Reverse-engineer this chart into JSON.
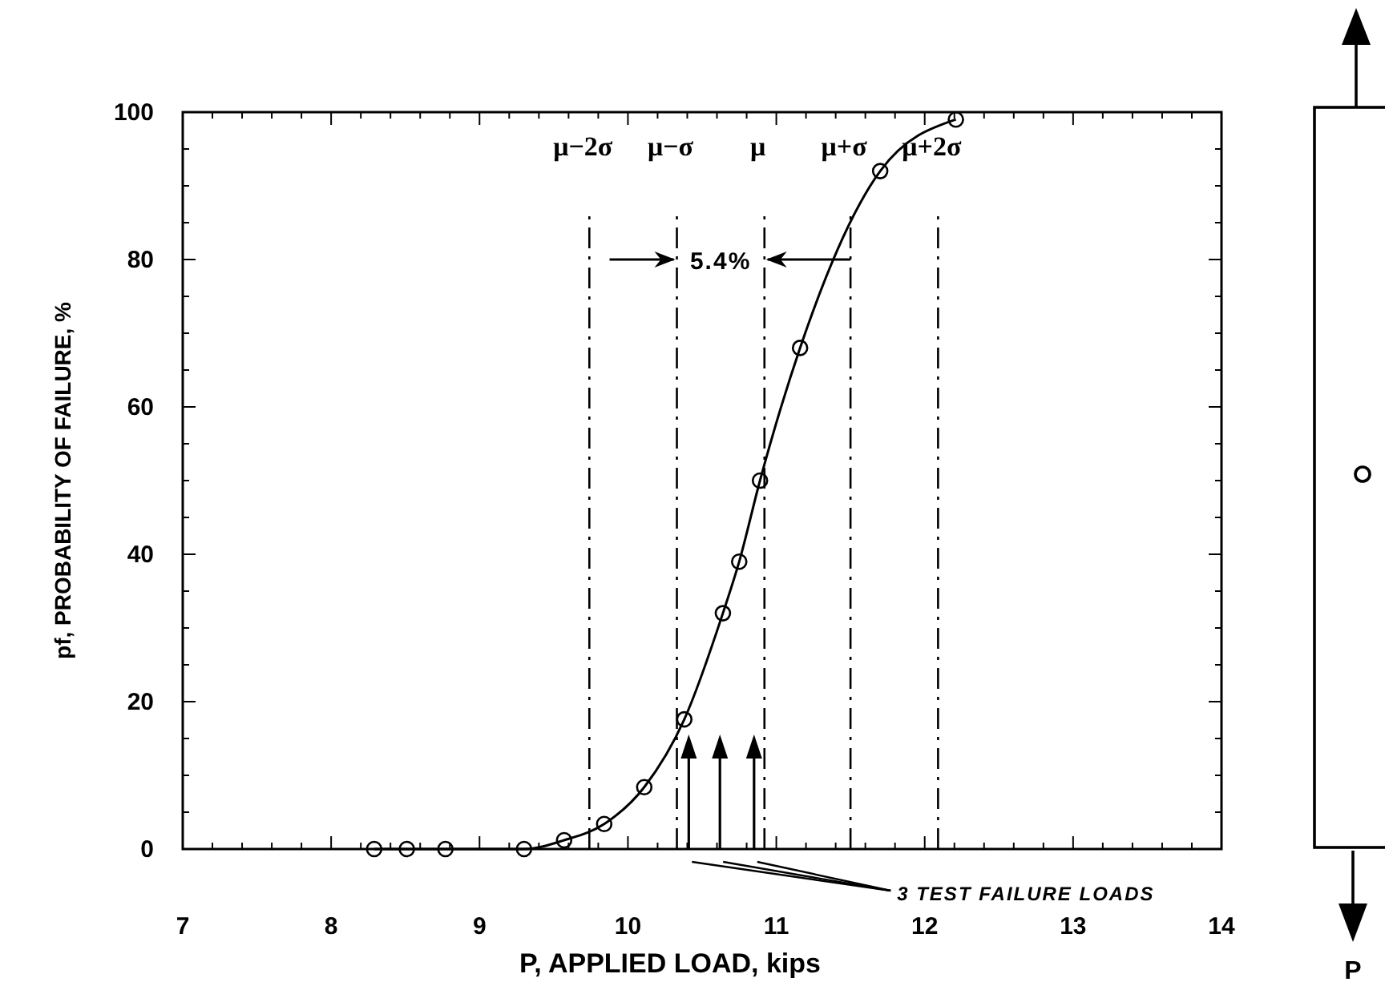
{
  "chart_data": {
    "type": "line",
    "xlabel": "P, APPLIED LOAD, kips",
    "ylabel": "pf, PROBABILITY OF FAILURE, %",
    "xlim": [
      7,
      14
    ],
    "ylim": [
      0,
      100
    ],
    "xticks": [
      7,
      {
        "value": 7.2,
        "label": null
      },
      {
        "value": 7.4,
        "label": null
      },
      {
        "value": 7.6,
        "label": null
      },
      {
        "value": 7.8,
        "label": null
      },
      8,
      {
        "value": 8.2,
        "label": null
      },
      {
        "value": 8.4,
        "label": null
      },
      {
        "value": 8.6,
        "label": null
      },
      {
        "value": 8.8,
        "label": null
      },
      9,
      {
        "value": 9.2,
        "label": null
      },
      {
        "value": 9.4,
        "label": null
      },
      {
        "value": 9.6,
        "label": null
      },
      {
        "value": 9.8,
        "label": null
      },
      10,
      {
        "value": 10.2,
        "label": null
      },
      {
        "value": 10.4,
        "label": null
      },
      {
        "value": 10.6,
        "label": null
      },
      {
        "value": 10.8,
        "label": null
      },
      11,
      {
        "value": 11.2,
        "label": null
      },
      {
        "value": 11.4,
        "label": null
      },
      {
        "value": 11.6,
        "label": null
      },
      {
        "value": 11.8,
        "label": null
      },
      12,
      {
        "value": 12.2,
        "label": null
      },
      {
        "value": 12.4,
        "label": null
      },
      {
        "value": 12.6,
        "label": null
      },
      {
        "value": 12.8,
        "label": null
      },
      13,
      {
        "value": 13.2,
        "label": null
      },
      {
        "value": 13.4,
        "label": null
      },
      {
        "value": 13.6,
        "label": null
      },
      {
        "value": 13.8,
        "label": null
      },
      14
    ],
    "yticks": [
      0,
      {
        "value": 5,
        "label": null
      },
      {
        "value": 10,
        "label": null
      },
      {
        "value": 15,
        "label": null
      },
      20,
      {
        "value": 25,
        "label": null
      },
      {
        "value": 30,
        "label": null
      },
      {
        "value": 35,
        "label": null
      },
      40,
      {
        "value": 45,
        "label": null
      },
      {
        "value": 50,
        "label": null
      },
      {
        "value": 55,
        "label": null
      },
      60,
      {
        "value": 65,
        "label": null
      },
      {
        "value": 70,
        "label": null
      },
      {
        "value": 75,
        "label": null
      },
      80,
      {
        "value": 85,
        "label": null
      },
      {
        "value": 90,
        "label": null
      },
      {
        "value": 95,
        "label": null
      },
      100
    ],
    "grid": false,
    "marker": "circle",
    "line_style": "solid",
    "series": [
      {
        "color": "#000000",
        "x": [
          8.29,
          8.51,
          8.77,
          9.3,
          9.57,
          9.84,
          10.11,
          10.38,
          10.64,
          10.75,
          10.89,
          11.16,
          11.7,
          12.21
        ],
        "values": [
          0,
          0,
          0,
          0,
          1.2,
          3.4,
          8.4,
          17.6,
          32,
          39,
          50,
          68,
          92,
          99
        ]
      },
      {
        "type": "lollipop",
        "color": "#000000",
        "marker": "triangle",
        "x": [
          10.41,
          10.62,
          10.85
        ],
        "values": [
          13.6,
          13.6,
          13.6
        ]
      }
    ],
    "ref_lines": [
      {
        "axis": "x",
        "value": 9.74,
        "label": "μ−2σ",
        "line_style": "dashed",
        "color": "#000000"
      },
      {
        "axis": "x",
        "value": 10.33,
        "label": "μ−σ",
        "line_style": "dashed",
        "color": "#000000"
      },
      {
        "axis": "x",
        "value": 10.92,
        "label": "μ",
        "line_style": "dashed",
        "color": "#000000"
      },
      {
        "axis": "x",
        "value": 11.5,
        "label": "μ+σ",
        "line_style": "dashed",
        "color": "#000000"
      },
      {
        "axis": "x",
        "value": 12.09,
        "label": "μ+2σ",
        "line_style": "dashed",
        "color": "#000000"
      }
    ],
    "annotations": [
      {
        "text": "5.4%",
        "x": 10.92,
        "y": 80
      },
      "3 TEST FAILURE LOADS",
      "P"
    ]
  }
}
